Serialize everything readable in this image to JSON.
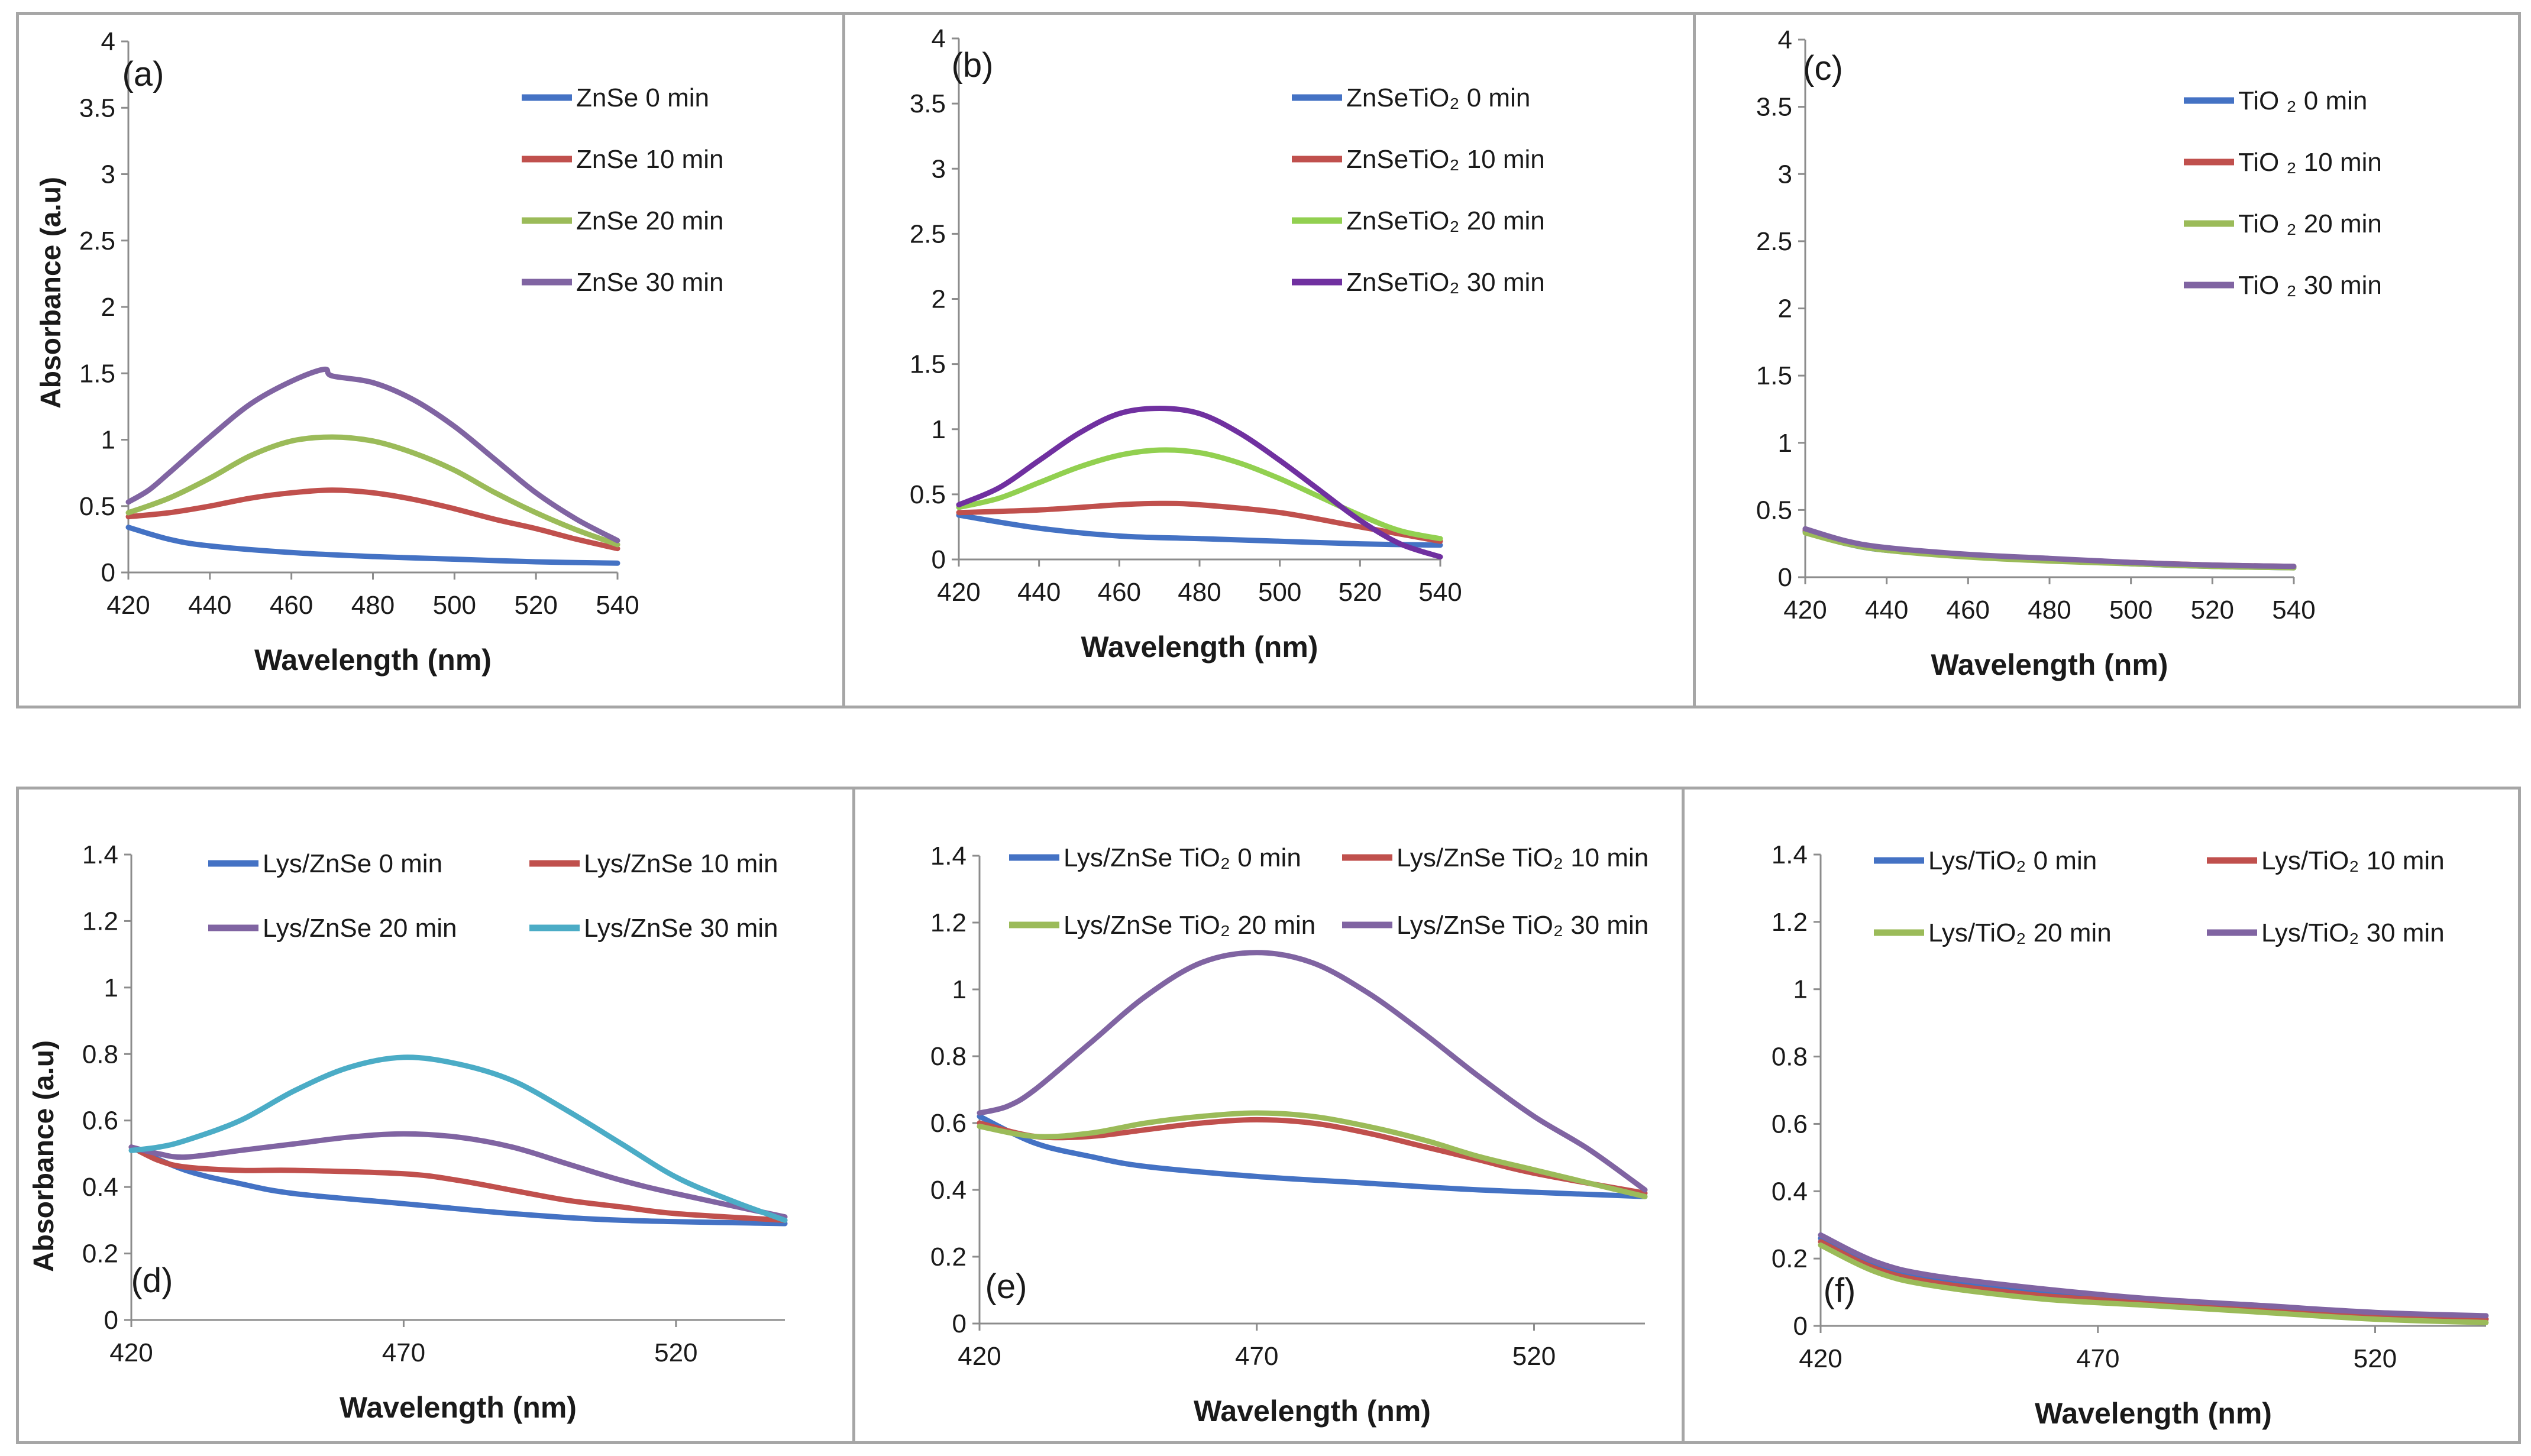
{
  "chart_data": [
    {
      "panel": "(a)",
      "type": "line",
      "xlabel": "Wavelength (nm)",
      "ylabel": "Absorbance (a.u)",
      "xlim": [
        420,
        540
      ],
      "ylim": [
        0,
        4
      ],
      "xticks": [
        "420",
        "440",
        "460",
        "480",
        "500",
        "520",
        "540"
      ],
      "yticks": [
        "0",
        "0.5",
        "1",
        "1.5",
        "2",
        "2.5",
        "3",
        "3.5",
        "4"
      ],
      "legend_position": "top-right",
      "legend_cols": 1,
      "series": [
        {
          "name": "ZnSe  0 min",
          "color": "#4472c4",
          "x": [
            420,
            430,
            440,
            460,
            480,
            500,
            520,
            540
          ],
          "y": [
            0.34,
            0.25,
            0.2,
            0.15,
            0.12,
            0.1,
            0.08,
            0.07
          ]
        },
        {
          "name": "ZnSe 10 min",
          "color": "#c0504d",
          "x": [
            420,
            430,
            440,
            450,
            460,
            470,
            480,
            490,
            500,
            510,
            520,
            530,
            540
          ],
          "y": [
            0.42,
            0.45,
            0.5,
            0.56,
            0.6,
            0.62,
            0.6,
            0.55,
            0.48,
            0.4,
            0.33,
            0.25,
            0.18
          ]
        },
        {
          "name": "ZnSe 20 min",
          "color": "#9bbb59",
          "x": [
            420,
            430,
            440,
            450,
            460,
            470,
            480,
            490,
            500,
            510,
            520,
            530,
            540
          ],
          "y": [
            0.45,
            0.56,
            0.71,
            0.88,
            0.99,
            1.02,
            0.99,
            0.9,
            0.77,
            0.6,
            0.45,
            0.32,
            0.21
          ]
        },
        {
          "name": "ZnSe 30 min",
          "color": "#8064a2",
          "x": [
            420,
            425,
            430,
            440,
            450,
            460,
            468,
            470,
            480,
            490,
            500,
            510,
            520,
            530,
            540
          ],
          "y": [
            0.53,
            0.62,
            0.75,
            1.02,
            1.27,
            1.44,
            1.53,
            1.48,
            1.43,
            1.3,
            1.1,
            0.85,
            0.6,
            0.4,
            0.24
          ]
        }
      ]
    },
    {
      "panel": "(b)",
      "type": "line",
      "xlabel": "Wavelength (nm)",
      "ylabel": "",
      "xlim": [
        420,
        540
      ],
      "ylim": [
        0,
        4
      ],
      "xticks": [
        "420",
        "440",
        "460",
        "480",
        "500",
        "520",
        "540"
      ],
      "yticks": [
        "0",
        "0.5",
        "1",
        "1.5",
        "2",
        "2.5",
        "3",
        "3.5",
        "4"
      ],
      "legend_position": "top-right",
      "legend_cols": 1,
      "series": [
        {
          "name": "ZnSeTiO₂  0 min",
          "color": "#4472c4",
          "x": [
            420,
            440,
            460,
            480,
            500,
            520,
            540
          ],
          "y": [
            0.34,
            0.24,
            0.18,
            0.16,
            0.14,
            0.12,
            0.11
          ]
        },
        {
          "name": "ZnSeTiO₂ 10 min",
          "color": "#c0504d",
          "x": [
            420,
            440,
            460,
            470,
            480,
            500,
            520,
            540
          ],
          "y": [
            0.36,
            0.38,
            0.42,
            0.43,
            0.42,
            0.36,
            0.25,
            0.14
          ]
        },
        {
          "name": "ZnSeTiO₂ 20 min",
          "color": "#92d050",
          "x": [
            420,
            430,
            440,
            450,
            460,
            470,
            480,
            490,
            500,
            510,
            520,
            530,
            540
          ],
          "y": [
            0.4,
            0.47,
            0.59,
            0.71,
            0.8,
            0.84,
            0.82,
            0.74,
            0.62,
            0.48,
            0.34,
            0.22,
            0.16
          ]
        },
        {
          "name": "ZnSeTiO₂ 30 min",
          "color": "#7030a0",
          "x": [
            420,
            430,
            440,
            450,
            460,
            470,
            480,
            490,
            500,
            510,
            520,
            530,
            540
          ],
          "y": [
            0.42,
            0.55,
            0.76,
            0.97,
            1.12,
            1.16,
            1.12,
            0.97,
            0.76,
            0.53,
            0.3,
            0.12,
            0.02
          ]
        }
      ]
    },
    {
      "panel": "(c)",
      "type": "line",
      "xlabel": "Wavelength (nm)",
      "ylabel": "",
      "xlim": [
        420,
        540
      ],
      "ylim": [
        0,
        4
      ],
      "xticks": [
        "420",
        "440",
        "460",
        "480",
        "500",
        "520",
        "540"
      ],
      "yticks": [
        "0",
        "0.5",
        "1",
        "1.5",
        "2",
        "2.5",
        "3",
        "3.5",
        "4"
      ],
      "legend_position": "top-right",
      "legend_cols": 1,
      "series": [
        {
          "name": "TiO ₂ 0 min",
          "color": "#4472c4",
          "x": [
            420,
            430,
            440,
            460,
            480,
            500,
            520,
            540
          ],
          "y": [
            0.34,
            0.25,
            0.2,
            0.16,
            0.13,
            0.1,
            0.08,
            0.07
          ]
        },
        {
          "name": "TiO ₂ 10 min",
          "color": "#c0504d",
          "x": [
            420,
            430,
            440,
            460,
            480,
            500,
            520,
            540
          ],
          "y": [
            0.35,
            0.26,
            0.21,
            0.16,
            0.13,
            0.11,
            0.09,
            0.08
          ]
        },
        {
          "name": "TiO ₂ 20 min",
          "color": "#9bbb59",
          "x": [
            420,
            430,
            440,
            460,
            480,
            500,
            520,
            540
          ],
          "y": [
            0.33,
            0.25,
            0.2,
            0.15,
            0.12,
            0.1,
            0.08,
            0.07
          ]
        },
        {
          "name": "TiO ₂ 30 min",
          "color": "#8064a2",
          "x": [
            420,
            430,
            440,
            460,
            480,
            500,
            520,
            540
          ],
          "y": [
            0.36,
            0.27,
            0.22,
            0.17,
            0.14,
            0.11,
            0.09,
            0.08
          ]
        }
      ]
    },
    {
      "panel": "(d)",
      "type": "line",
      "xlabel": "Wavelength (nm)",
      "ylabel": "Absorbance (a.u)",
      "xlim": [
        420,
        540
      ],
      "ylim": [
        0,
        1.4
      ],
      "xticks": [
        "420",
        "470",
        "520"
      ],
      "xtick_values": [
        420,
        470,
        520
      ],
      "yticks": [
        "0",
        "0.2",
        "0.4",
        "0.6",
        "0.8",
        "1",
        "1.2",
        "1.4"
      ],
      "legend_position": "top",
      "legend_cols": 2,
      "series": [
        {
          "name": "Lys/ZnSe  0 min",
          "color": "#4472c4",
          "x": [
            420,
            430,
            440,
            450,
            470,
            490,
            510,
            540
          ],
          "y": [
            0.52,
            0.45,
            0.41,
            0.38,
            0.35,
            0.32,
            0.3,
            0.29
          ]
        },
        {
          "name": "Lys/ZnSe 10 min",
          "color": "#c0504d",
          "x": [
            420,
            425,
            430,
            440,
            450,
            470,
            480,
            490,
            500,
            510,
            520,
            540
          ],
          "y": [
            0.52,
            0.48,
            0.46,
            0.45,
            0.45,
            0.44,
            0.42,
            0.39,
            0.36,
            0.34,
            0.32,
            0.3
          ]
        },
        {
          "name": "Lys/ZnSe 20 min",
          "color": "#8064a2",
          "x": [
            420,
            425,
            430,
            440,
            450,
            460,
            470,
            480,
            490,
            500,
            510,
            520,
            540
          ],
          "y": [
            0.52,
            0.5,
            0.49,
            0.51,
            0.53,
            0.55,
            0.56,
            0.55,
            0.52,
            0.47,
            0.42,
            0.38,
            0.31
          ]
        },
        {
          "name": "Lys/ZnSe 30 min",
          "color": "#4bacc6",
          "x": [
            420,
            425,
            430,
            440,
            450,
            460,
            470,
            480,
            490,
            500,
            510,
            520,
            530,
            540
          ],
          "y": [
            0.51,
            0.52,
            0.54,
            0.6,
            0.69,
            0.76,
            0.79,
            0.77,
            0.72,
            0.63,
            0.53,
            0.43,
            0.36,
            0.3
          ]
        }
      ]
    },
    {
      "panel": "(e)",
      "type": "line",
      "xlabel": "Wavelength (nm)",
      "ylabel": "",
      "xlim": [
        420,
        540
      ],
      "ylim": [
        0,
        1.4
      ],
      "xticks": [
        "420",
        "470",
        "520"
      ],
      "xtick_values": [
        420,
        470,
        520
      ],
      "yticks": [
        "0",
        "0.2",
        "0.4",
        "0.6",
        "0.8",
        "1",
        "1.2",
        "1.4"
      ],
      "legend_position": "top",
      "legend_cols": 2,
      "series": [
        {
          "name": "Lys/ZnSe TiO₂ 0 min",
          "color": "#4472c4",
          "x": [
            420,
            430,
            440,
            450,
            470,
            490,
            510,
            540
          ],
          "y": [
            0.62,
            0.54,
            0.5,
            0.47,
            0.44,
            0.42,
            0.4,
            0.38
          ]
        },
        {
          "name": "Lys/ZnSe TiO₂ 10 min",
          "color": "#c0504d",
          "x": [
            420,
            430,
            440,
            450,
            460,
            470,
            480,
            490,
            500,
            510,
            520,
            540
          ],
          "y": [
            0.6,
            0.56,
            0.56,
            0.58,
            0.6,
            0.61,
            0.6,
            0.57,
            0.53,
            0.49,
            0.45,
            0.39
          ]
        },
        {
          "name": "Lys/ZnSe TiO₂ 20 min",
          "color": "#9bbb59",
          "x": [
            420,
            430,
            440,
            450,
            460,
            470,
            480,
            490,
            500,
            510,
            520,
            540
          ],
          "y": [
            0.59,
            0.56,
            0.57,
            0.6,
            0.62,
            0.63,
            0.62,
            0.59,
            0.55,
            0.5,
            0.46,
            0.38
          ]
        },
        {
          "name": "Lys/ZnSe TiO₂ 30 min",
          "color": "#8064a2",
          "x": [
            420,
            425,
            430,
            440,
            450,
            460,
            470,
            480,
            490,
            500,
            510,
            520,
            530,
            540
          ],
          "y": [
            0.63,
            0.65,
            0.7,
            0.84,
            0.98,
            1.08,
            1.11,
            1.08,
            0.99,
            0.87,
            0.74,
            0.62,
            0.52,
            0.4
          ]
        }
      ]
    },
    {
      "panel": "(f)",
      "type": "line",
      "xlabel": "Wavelength (nm)",
      "ylabel": "",
      "xlim": [
        420,
        540
      ],
      "ylim": [
        0,
        1.4
      ],
      "xticks": [
        "420",
        "470",
        "520"
      ],
      "xtick_values": [
        420,
        470,
        520
      ],
      "yticks": [
        "0",
        "0.2",
        "0.4",
        "0.6",
        "0.8",
        "1",
        "1.2",
        "1.4"
      ],
      "legend_position": "top",
      "legend_cols": 2,
      "series": [
        {
          "name": "Lys/TiO₂ 0 min",
          "color": "#4472c4",
          "x": [
            420,
            430,
            440,
            460,
            480,
            500,
            520,
            540
          ],
          "y": [
            0.26,
            0.18,
            0.14,
            0.1,
            0.07,
            0.05,
            0.03,
            0.02
          ]
        },
        {
          "name": "Lys/TiO₂ 10 min",
          "color": "#c0504d",
          "x": [
            420,
            430,
            440,
            460,
            480,
            500,
            520,
            540
          ],
          "y": [
            0.25,
            0.17,
            0.13,
            0.09,
            0.07,
            0.05,
            0.03,
            0.02
          ]
        },
        {
          "name": "Lys/TiO₂ 20 min",
          "color": "#9bbb59",
          "x": [
            420,
            430,
            440,
            460,
            480,
            500,
            520,
            540
          ],
          "y": [
            0.24,
            0.16,
            0.12,
            0.08,
            0.06,
            0.04,
            0.02,
            0.01
          ]
        },
        {
          "name": "Lys/TiO₂ 30 min",
          "color": "#8064a2",
          "x": [
            420,
            430,
            440,
            460,
            480,
            500,
            520,
            540
          ],
          "y": [
            0.27,
            0.19,
            0.15,
            0.11,
            0.08,
            0.06,
            0.04,
            0.03
          ]
        }
      ]
    }
  ]
}
